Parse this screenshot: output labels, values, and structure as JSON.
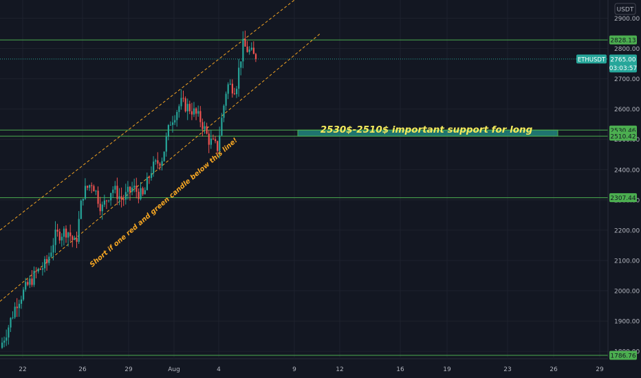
{
  "chart_data": {
    "type": "candlestick",
    "symbol": "ETHUSDT",
    "currency": "USDT",
    "last_price": "2765.00",
    "countdown": "03:03:57",
    "ylim": [
      1780,
      2960
    ],
    "y_ticks": [
      "2900.00",
      "2800.00",
      "2700.00",
      "2600.00",
      "2500.00",
      "2400.00",
      "2300.00",
      "2200.00",
      "2100.00",
      "2000.00",
      "1900.00",
      "1800.00"
    ],
    "x_ticks": [
      "22",
      "26",
      "29",
      "Aug",
      "4",
      "9",
      "12",
      "16",
      "19",
      "23",
      "26",
      "29"
    ],
    "horizontal_levels": [
      {
        "label": "2828.13",
        "value": 2828.13
      },
      {
        "label": "2530.46",
        "value": 2530.46
      },
      {
        "label": "2510.42",
        "value": 2510.42
      },
      {
        "label": "2307.44",
        "value": 2307.44
      },
      {
        "label": "1786.76",
        "value": 1786.76
      }
    ],
    "support_zone": {
      "low": 2510.42,
      "high": 2530.46
    },
    "channel": {
      "upper_start": [
        0,
        2200
      ],
      "upper_end": [
        445,
        2990
      ],
      "lower_start": [
        0,
        1965
      ],
      "lower_end": [
        465,
        2848
      ]
    },
    "annotations": {
      "support_text": "2530$-2510$ important support for long",
      "channel_text": "Short if one red and green candle below this line!"
    },
    "colors": {
      "up": "#26a69a",
      "down": "#ef5350",
      "level": "#4caf50",
      "channel": "#f5a623",
      "support_text": "#f4ea5c",
      "badge": "#26a69a"
    }
  }
}
